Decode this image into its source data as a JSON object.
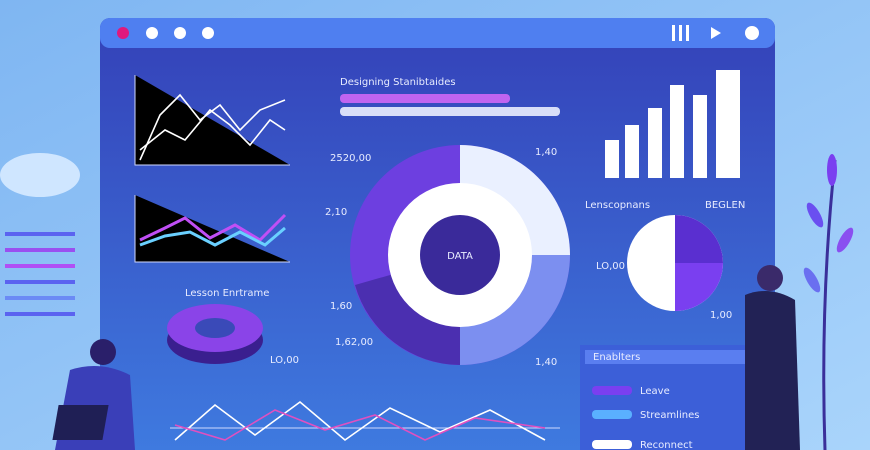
{
  "dashboard": {
    "title": "Designing Stanibtaides",
    "center_label": "DATA",
    "donut_labels": [
      "2520,00",
      "1,40",
      "2,10",
      "1,60",
      "1,62,00",
      "1,40"
    ],
    "pie_labels": [
      "Lenscopnans",
      "BEGLEN",
      "LO,00",
      "1,00"
    ],
    "small_donut_label": "Lesson Enrtrame",
    "small_donut_value": "LO,00"
  },
  "panel": {
    "title": "Enablters",
    "items": [
      "Leave",
      "Streamlines",
      "Reconnect"
    ]
  }
}
